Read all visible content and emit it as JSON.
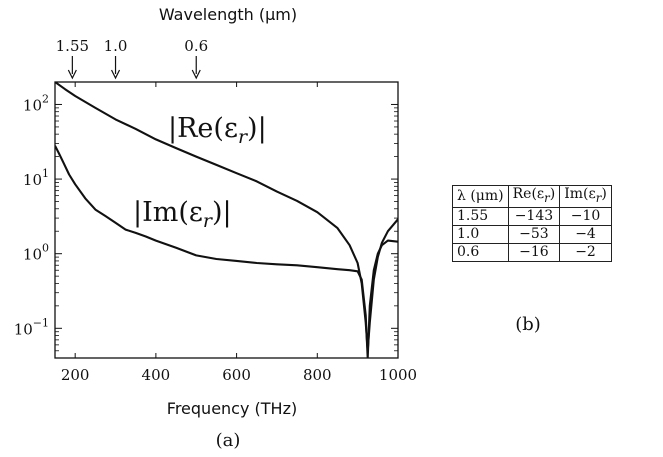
{
  "chart_data": [
    {
      "type": "line",
      "caption": "(a)",
      "xlabel": "Frequency (THz)",
      "top_axis_label": "Wavelength (μm)",
      "xlim": [
        150,
        1000
      ],
      "ylim": [
        0.04,
        200
      ],
      "yscale": "log",
      "x_ticks": [
        "200",
        "400",
        "600",
        "800",
        "1000"
      ],
      "y_ticks": [
        {
          "base": "10",
          "exp": "2"
        },
        {
          "base": "10",
          "exp": "1"
        },
        {
          "base": "10",
          "exp": "0"
        },
        {
          "base": "10",
          "exp": "−1"
        }
      ],
      "top_ticks": [
        {
          "label": "1.55",
          "freq": 193
        },
        {
          "label": "1.0",
          "freq": 300
        },
        {
          "label": "0.6",
          "freq": 500
        }
      ],
      "series": [
        {
          "name": "|Re(ε",
          "name_sub": "r",
          "name_end": ")|",
          "x": [
            150,
            175,
            200,
            250,
            300,
            350,
            400,
            450,
            500,
            550,
            600,
            650,
            700,
            750,
            800,
            850,
            880,
            900,
            910,
            920,
            925,
            930,
            940,
            950,
            960,
            975,
            1000
          ],
          "y": [
            200,
            160,
            130,
            90,
            63,
            47,
            34,
            26,
            20,
            15.5,
            12,
            9.3,
            6.8,
            5.1,
            3.6,
            2.2,
            1.3,
            0.75,
            0.4,
            0.12,
            0.05,
            0.12,
            0.45,
            0.9,
            1.4,
            2.0,
            2.9
          ]
        },
        {
          "name": "|Im(ε",
          "name_sub": "r",
          "name_end": ")|",
          "x": [
            150,
            160,
            170,
            185,
            200,
            225,
            250,
            275,
            300,
            325,
            350,
            375,
            400,
            450,
            500,
            550,
            600,
            650,
            700,
            750,
            800,
            850,
            880,
            900,
            910,
            920,
            925,
            930,
            940,
            950,
            960,
            975,
            1000
          ],
          "y": [
            28,
            22,
            17,
            11.5,
            8.5,
            5.5,
            3.9,
            3.2,
            2.6,
            2.1,
            1.9,
            1.7,
            1.5,
            1.2,
            0.95,
            0.85,
            0.8,
            0.75,
            0.72,
            0.7,
            0.66,
            0.62,
            0.6,
            0.58,
            0.45,
            0.15,
            0.04,
            0.2,
            0.6,
            1.0,
            1.3,
            1.5,
            1.45
          ]
        }
      ]
    },
    {
      "type": "table",
      "caption": "(b)",
      "columns": [
        "λ (μm)",
        "Re(ε",
        "Im(ε"
      ],
      "column_sub": "r",
      "column_end": ")",
      "rows": [
        [
          "1.55",
          "−143",
          "−10"
        ],
        [
          "1.0",
          "−53",
          "−4"
        ],
        [
          "0.6",
          "−16",
          "−2"
        ]
      ]
    }
  ]
}
